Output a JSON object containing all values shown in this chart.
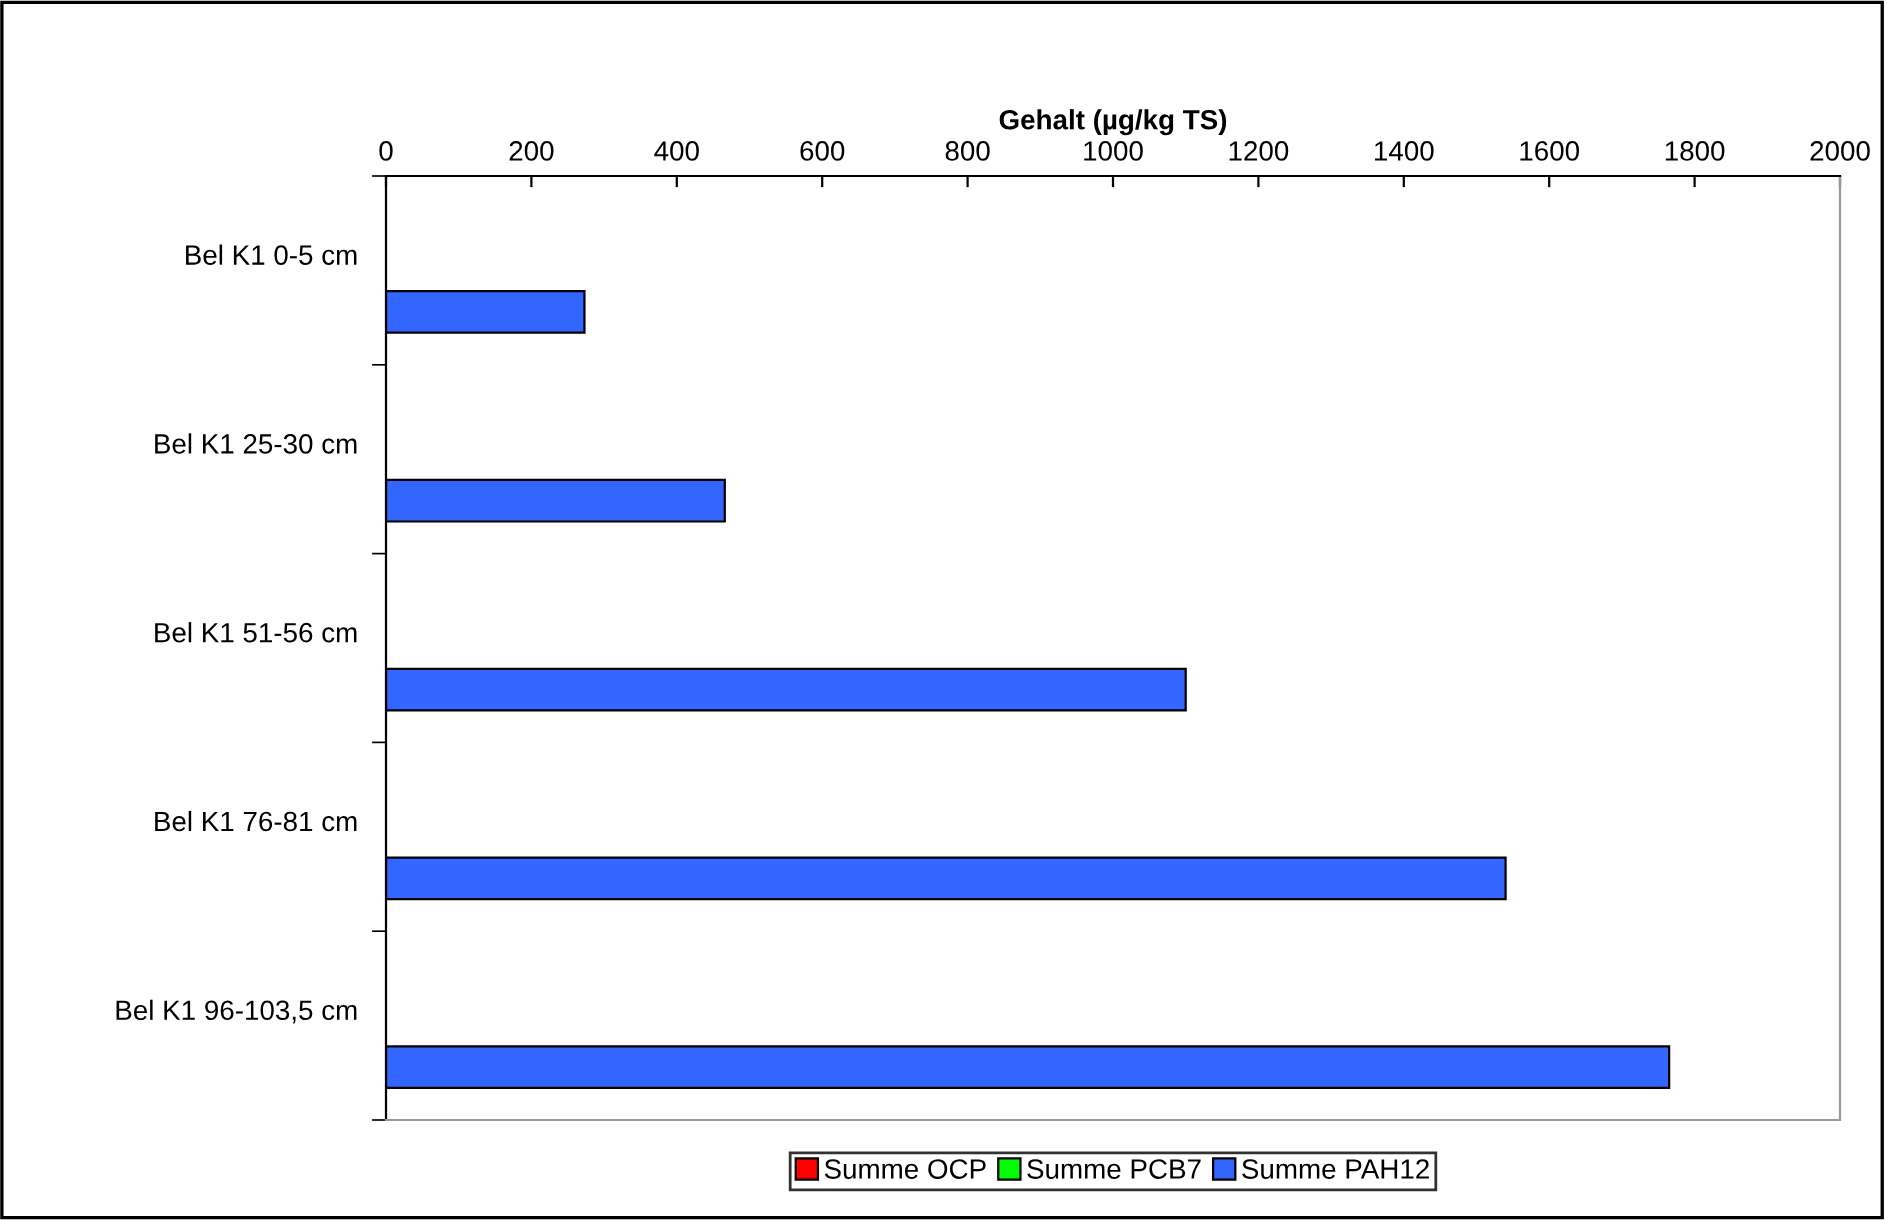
{
  "chart_data": {
    "type": "bar",
    "orientation": "horizontal",
    "xlabel": "Gehalt (µg/kg TS)",
    "categories": [
      "Bel K1 0-5 cm",
      "Bel K1 25-30 cm",
      "Bel K1 51-56 cm",
      "Bel K1 76-81 cm",
      "Bel K1 96-103,5 cm"
    ],
    "series": [
      {
        "name": "Summe OCP",
        "color": "#ff0000",
        "values": [
          null,
          null,
          null,
          null,
          null
        ]
      },
      {
        "name": "Summe PCB7",
        "color": "#00ff00",
        "values": [
          null,
          null,
          null,
          null,
          null
        ]
      },
      {
        "name": "Summe PAH12",
        "color": "#3366ff",
        "values": [
          273,
          466,
          1100,
          1540,
          1765
        ]
      }
    ],
    "xlim": [
      0,
      2000
    ],
    "xticks": [
      0,
      200,
      400,
      600,
      800,
      1000,
      1200,
      1400,
      1600,
      1800,
      2000
    ],
    "grid": false,
    "legend": "bottom"
  }
}
